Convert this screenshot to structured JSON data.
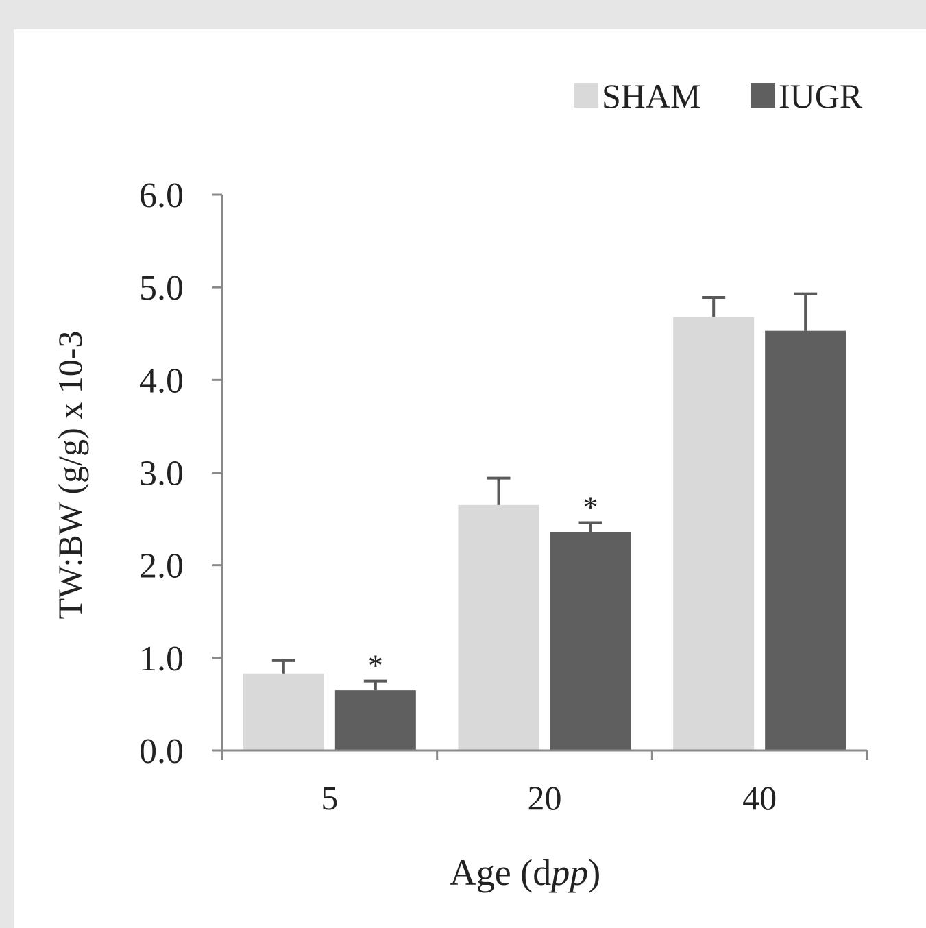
{
  "chart_data": {
    "type": "bar",
    "categories": [
      "5",
      "20",
      "40"
    ],
    "series": [
      {
        "name": "SHAM",
        "color": "#d9d9d9",
        "values": [
          0.83,
          2.65,
          4.68
        ],
        "errors": [
          0.14,
          0.29,
          0.21
        ],
        "significance": [
          "",
          "",
          ""
        ]
      },
      {
        "name": "IUGR",
        "color": "#5f5f5f",
        "values": [
          0.65,
          2.36,
          4.53
        ],
        "errors": [
          0.1,
          0.1,
          0.4
        ],
        "significance": [
          "*",
          "*",
          ""
        ]
      }
    ],
    "xlabel_prefix": "Age (d",
    "xlabel_italic": "pp",
    "xlabel_suffix": ")",
    "ylabel": "TW:BW (g/g) x 10-3",
    "ylim": [
      0,
      6
    ],
    "yticks": [
      "0.0",
      "1.0",
      "2.0",
      "3.0",
      "4.0",
      "5.0",
      "6.0"
    ],
    "legend_position": "top-right",
    "grid": false
  }
}
